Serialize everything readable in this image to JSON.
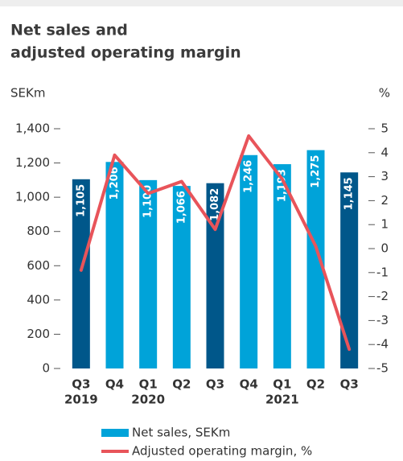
{
  "chart_data": {
    "type": "bar_line",
    "title": [
      "Net sales and",
      "adjusted operating margin"
    ],
    "y_label": "SEKm",
    "y2_label": "%",
    "categories": [
      "Q3",
      "Q4",
      "Q1",
      "Q2",
      "Q3",
      "Q4",
      "Q1",
      "Q2",
      "Q3"
    ],
    "years": [
      "2019",
      null,
      "2020",
      null,
      null,
      null,
      "2021",
      null,
      null
    ],
    "ylim": [
      0,
      1400
    ],
    "yticks": [
      0,
      200,
      400,
      600,
      800,
      {
        "value": 1000,
        "label": "1,000"
      },
      {
        "value": 1200,
        "label": "1,200"
      },
      {
        "value": 1400,
        "label": "1,400"
      }
    ],
    "y2lim": [
      -5,
      5
    ],
    "y2ticks": [
      -5,
      -4,
      -3,
      -2,
      -1,
      0,
      1,
      2,
      3,
      4,
      5
    ],
    "series": [
      {
        "name": "Net sales, SEKm",
        "type": "bar",
        "color": "#00a3d9",
        "colors": [
          "#00578a",
          "#00a3d9",
          "#00a3d9",
          "#00a3d9",
          "#00578a",
          "#00a3d9",
          "#00a3d9",
          "#00a3d9",
          "#00578a"
        ],
        "values": [
          1105,
          1206,
          1100,
          1066,
          1082,
          1246,
          1193,
          1275,
          1145
        ],
        "value_labels": [
          "1,105",
          "1,206",
          "1,100",
          "1,066",
          "1,082",
          "1,246",
          "1,193",
          "1,275",
          "1,145"
        ]
      },
      {
        "name": "Adjusted operating margin, %",
        "type": "line",
        "axis": "y2",
        "color": "#e8545a",
        "values": [
          -0.9,
          3.9,
          2.3,
          2.8,
          0.8,
          4.7,
          2.9,
          0.1,
          -4.2
        ]
      }
    ]
  }
}
